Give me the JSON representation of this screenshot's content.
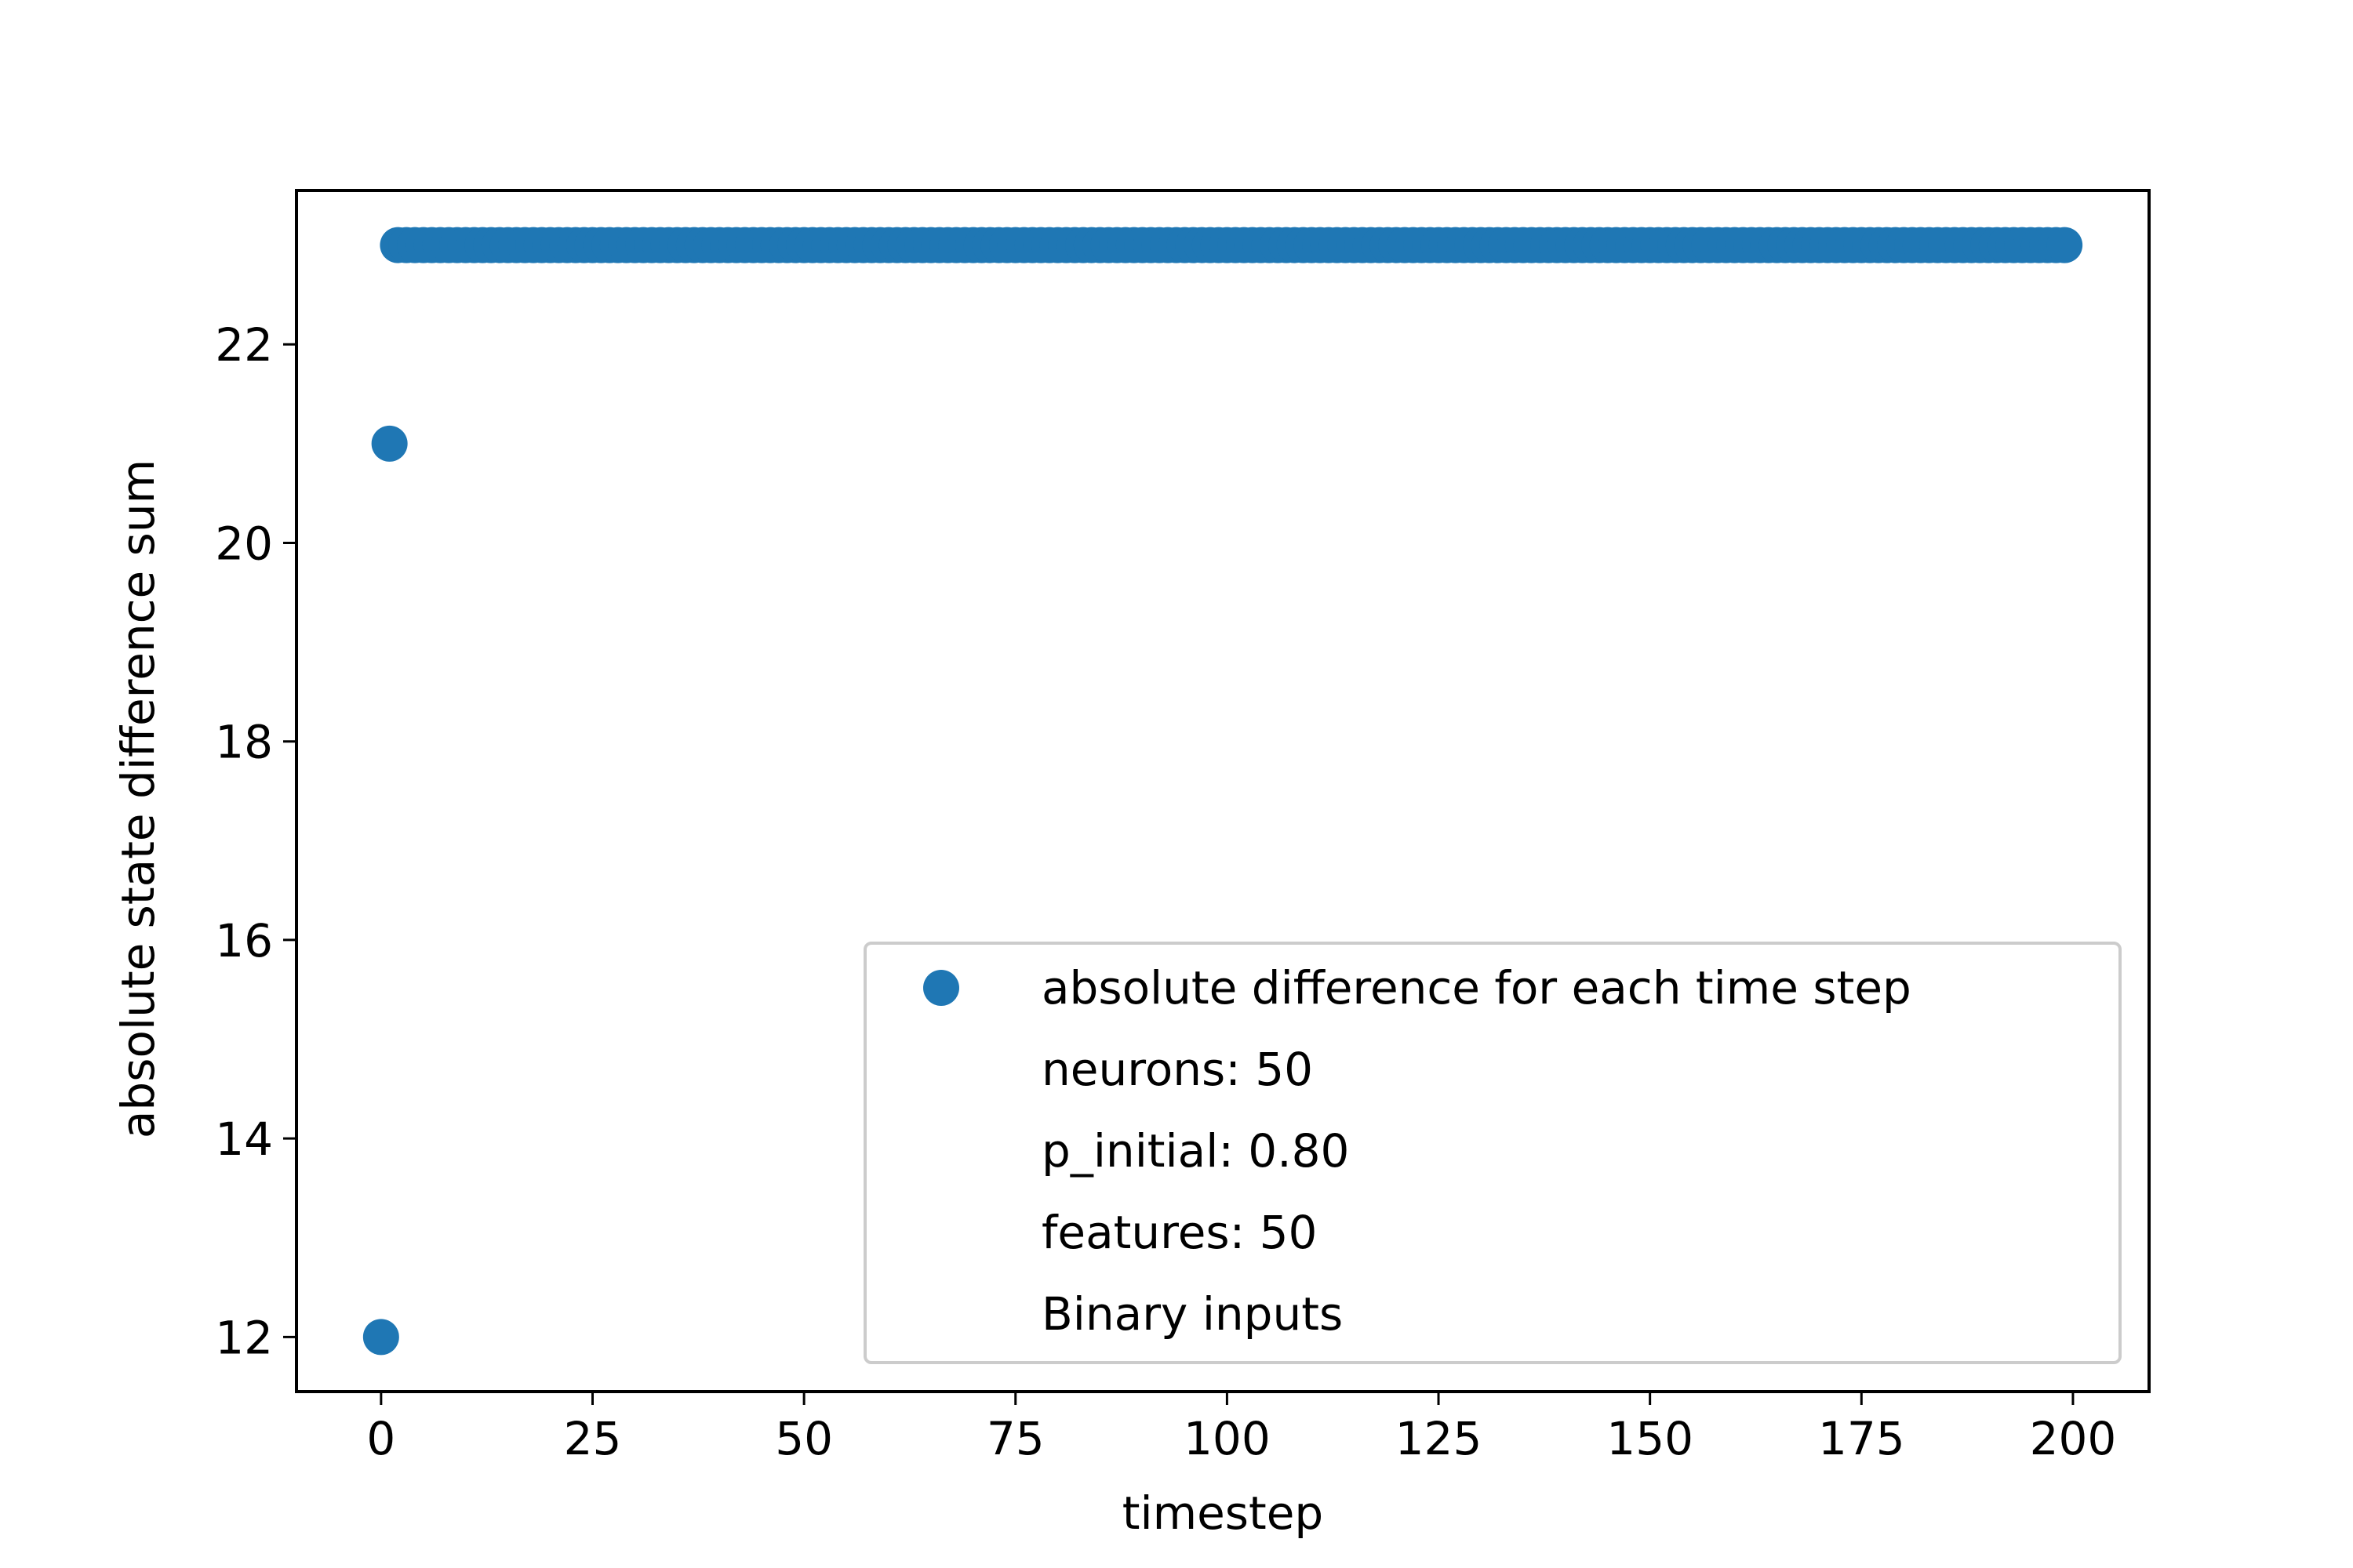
{
  "chart_data": {
    "type": "scatter",
    "xlabel": "timestep",
    "ylabel": "absolute state difference sum",
    "xlim": [
      -10,
      209
    ],
    "ylim": [
      11.45,
      23.55
    ],
    "x_ticks": [
      0,
      25,
      50,
      75,
      100,
      125,
      150,
      175,
      200
    ],
    "y_ticks": [
      12,
      14,
      16,
      18,
      20,
      22
    ],
    "grid": false,
    "legend_position": "lower-right",
    "marker_color": "#1f77b4",
    "series": [
      {
        "name": "absolute difference for each time step",
        "x_start": 0,
        "x_end": 199,
        "points": [
          {
            "x": 0,
            "y": 12
          },
          {
            "x": 1,
            "y": 21
          }
        ],
        "constant_from_x": 2,
        "constant_y": 23
      }
    ],
    "legend_entries": [
      "absolute difference for each time step",
      "neurons: 50",
      "p_initial: 0.80",
      "features: 50",
      "Binary inputs"
    ]
  }
}
